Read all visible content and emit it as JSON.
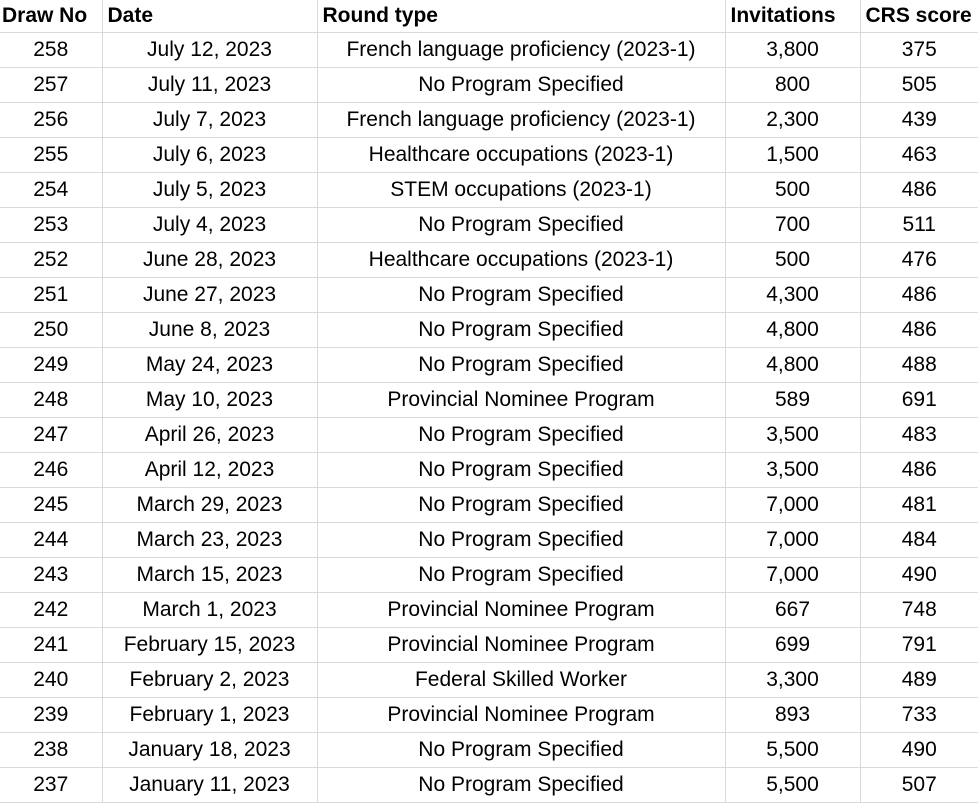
{
  "chart_data": {
    "type": "table",
    "columns": [
      "Draw No",
      "Date",
      "Round type",
      "Invitations",
      "CRS score"
    ],
    "rows": [
      [
        "258",
        "July 12, 2023",
        "French language proficiency (2023-1)",
        "3,800",
        "375"
      ],
      [
        "257",
        "July 11, 2023",
        "No Program Specified",
        "800",
        "505"
      ],
      [
        "256",
        "July 7, 2023",
        "French language proficiency (2023-1)",
        "2,300",
        "439"
      ],
      [
        "255",
        "July 6, 2023",
        "Healthcare occupations (2023-1)",
        "1,500",
        "463"
      ],
      [
        "254",
        "July 5, 2023",
        "STEM occupations (2023-1)",
        "500",
        "486"
      ],
      [
        "253",
        "July 4, 2023",
        "No Program Specified",
        "700",
        "511"
      ],
      [
        "252",
        "June 28, 2023",
        "Healthcare occupations (2023-1)",
        "500",
        "476"
      ],
      [
        "251",
        "June 27, 2023",
        "No Program Specified",
        "4,300",
        "486"
      ],
      [
        "250",
        "June 8, 2023",
        "No Program Specified",
        "4,800",
        "486"
      ],
      [
        "249",
        "May 24, 2023",
        "No Program Specified",
        "4,800",
        "488"
      ],
      [
        "248",
        "May 10, 2023",
        "Provincial Nominee Program",
        "589",
        "691"
      ],
      [
        "247",
        "April 26, 2023",
        "No Program Specified",
        "3,500",
        "483"
      ],
      [
        "246",
        "April 12, 2023",
        "No Program Specified",
        "3,500",
        "486"
      ],
      [
        "245",
        "March 29, 2023",
        "No Program Specified",
        "7,000",
        "481"
      ],
      [
        "244",
        "March 23, 2023",
        "No Program Specified",
        "7,000",
        "484"
      ],
      [
        "243",
        "March 15, 2023",
        "No Program Specified",
        "7,000",
        "490"
      ],
      [
        "242",
        "March 1, 2023",
        "Provincial Nominee Program",
        "667",
        "748"
      ],
      [
        "241",
        "February 15, 2023",
        "Provincial Nominee Program",
        "699",
        "791"
      ],
      [
        "240",
        "February 2, 2023",
        "Federal Skilled Worker",
        "3,300",
        "489"
      ],
      [
        "239",
        "February 1, 2023",
        "Provincial Nominee Program",
        "893",
        "733"
      ],
      [
        "238",
        "January 18, 2023",
        "No Program Specified",
        "5,500",
        "490"
      ],
      [
        "237",
        "January 11, 2023",
        "No Program Specified",
        "5,500",
        "507"
      ]
    ],
    "layout": {
      "grid": "on",
      "header_style": "bold",
      "data_alignment": "center"
    }
  },
  "colors": {
    "gridline": "#d9d9d9",
    "text": "#000000",
    "background": "#ffffff"
  }
}
